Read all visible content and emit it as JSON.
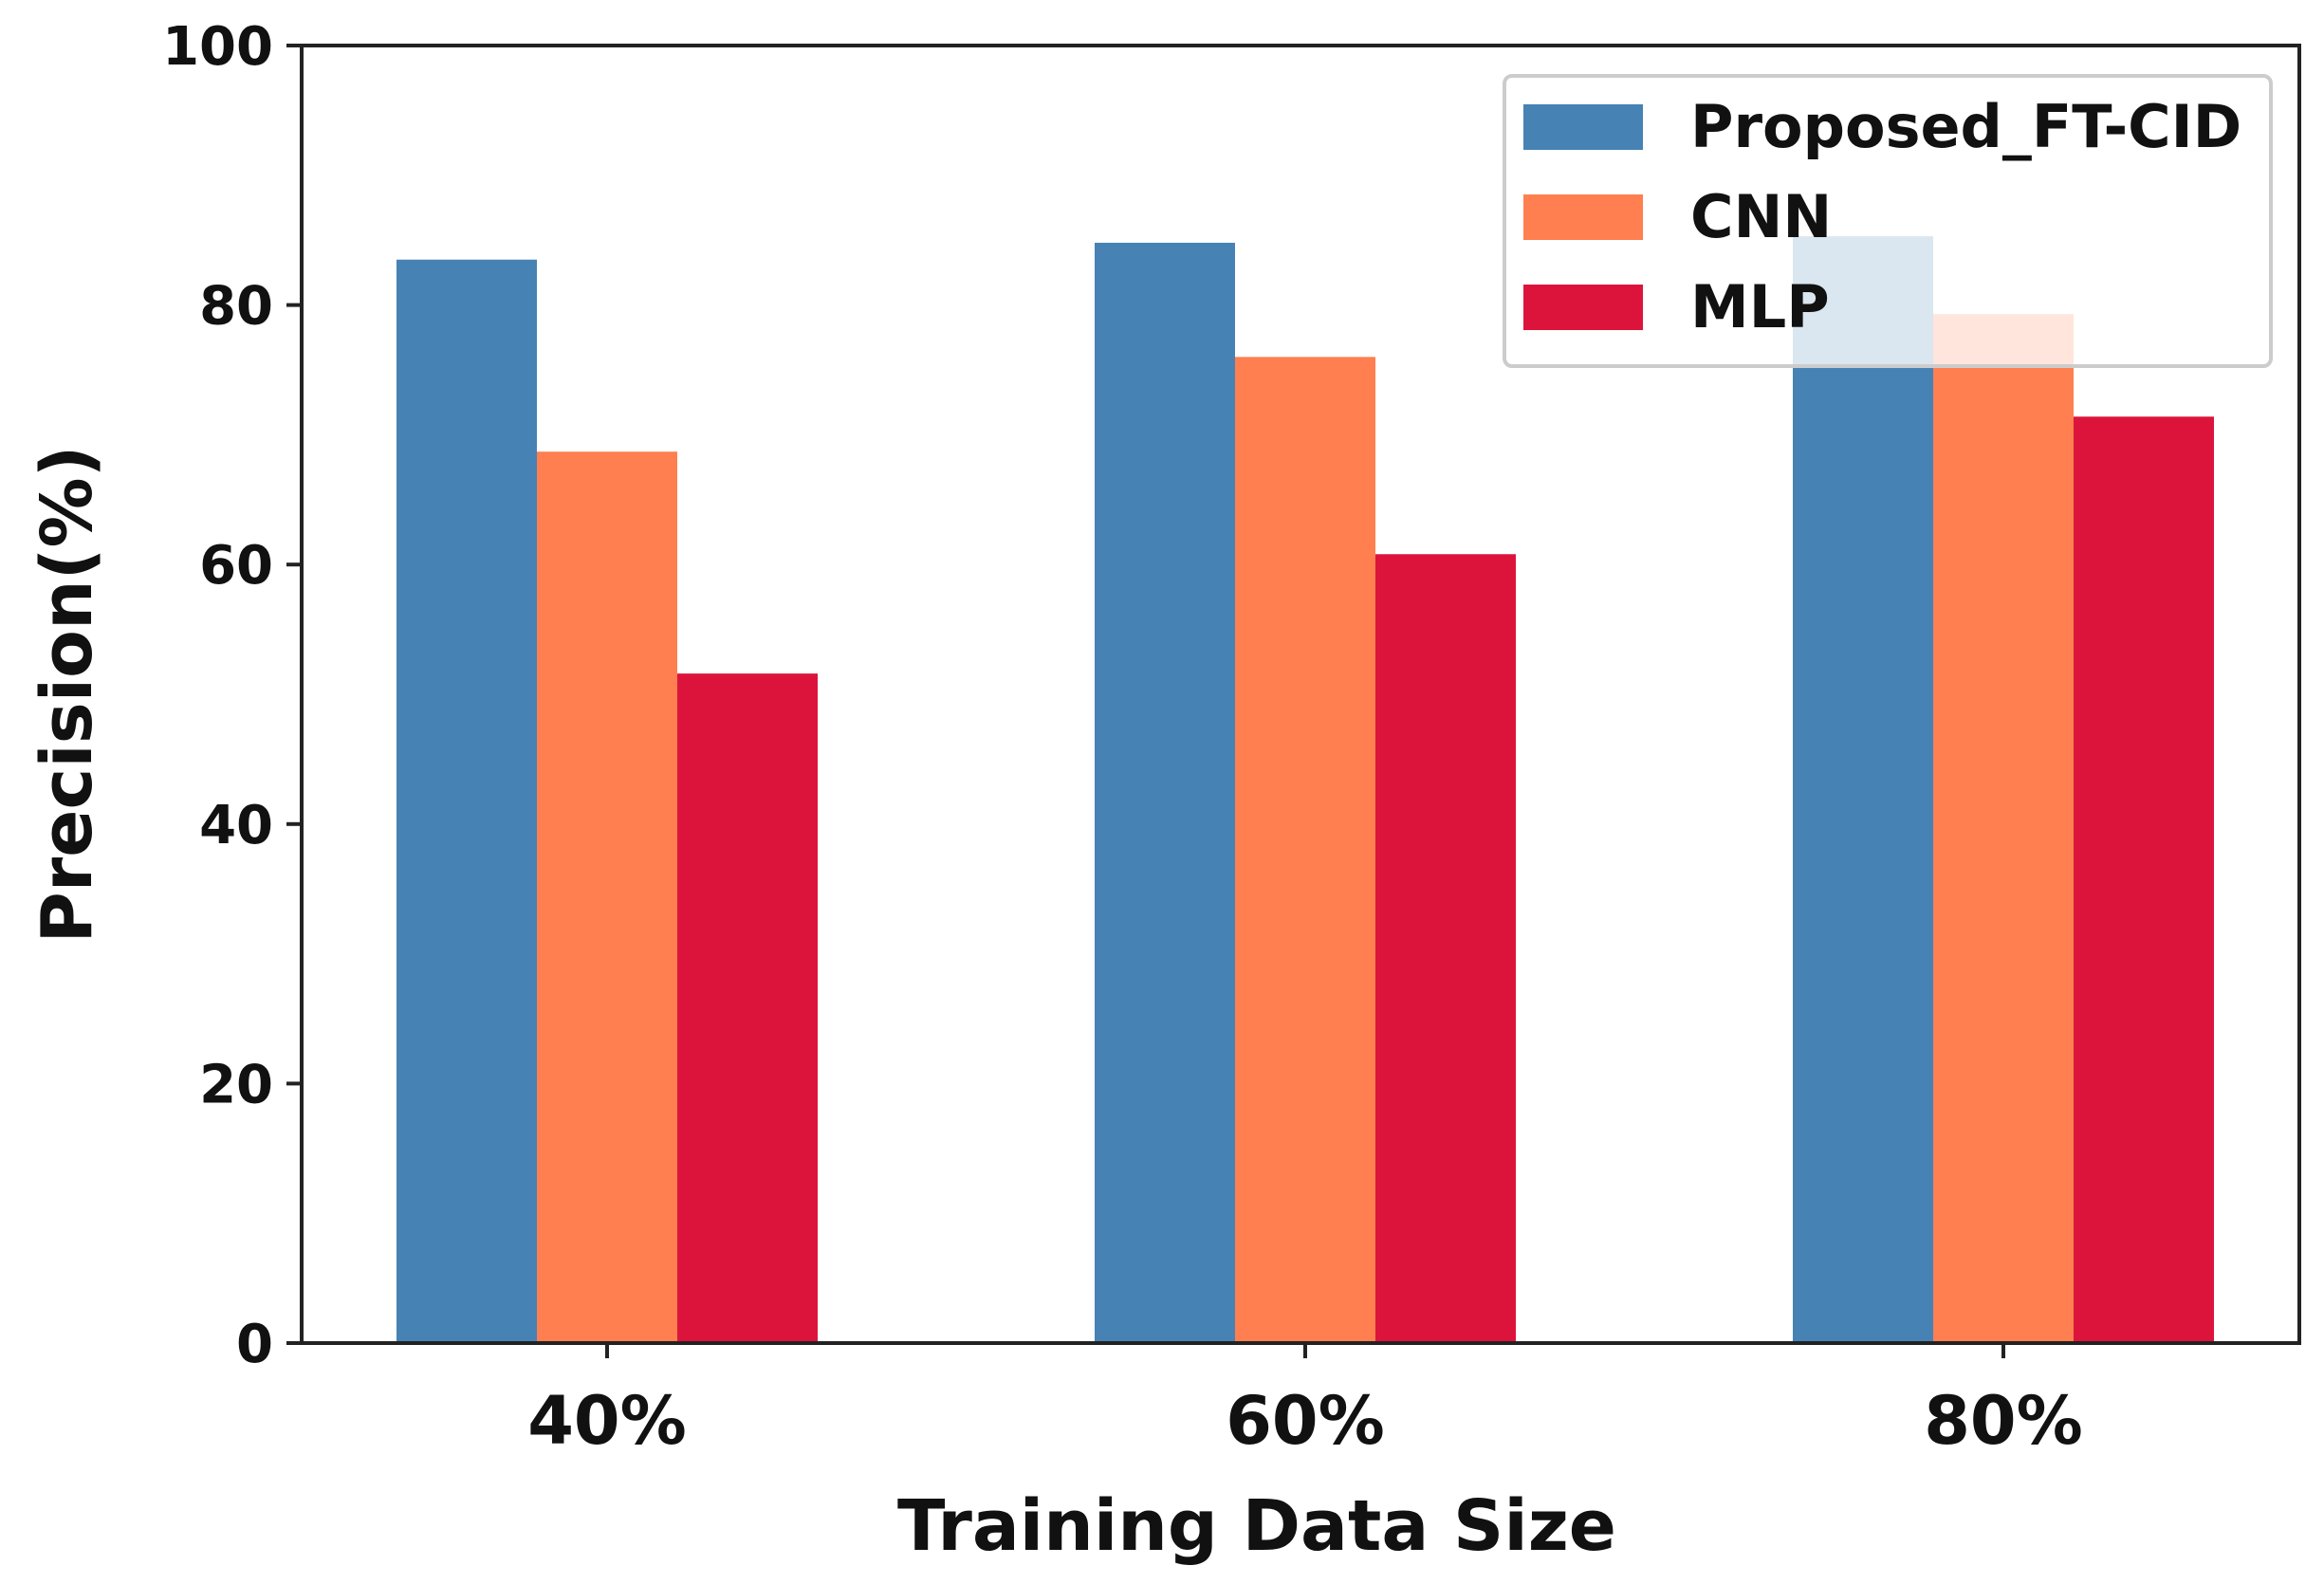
{
  "chart_data": {
    "type": "bar",
    "title": "",
    "xlabel": "Training Data Size",
    "ylabel": "Precision(%)",
    "categories": [
      "40%",
      "60%",
      "80%"
    ],
    "ylim": [
      0,
      100
    ],
    "yticks": [
      0,
      20,
      40,
      60,
      80,
      100
    ],
    "grid": false,
    "legend_position": "top-right",
    "series": [
      {
        "name": "Proposed_FT-CID",
        "color": "#4682B4",
        "values": [
          83.5,
          84.8,
          85.3
        ]
      },
      {
        "name": "CNN",
        "color": "#FF7F50",
        "values": [
          68.7,
          76.0,
          79.3
        ]
      },
      {
        "name": "MLP",
        "color": "#DC143C",
        "values": [
          51.6,
          60.8,
          71.4
        ]
      }
    ]
  }
}
